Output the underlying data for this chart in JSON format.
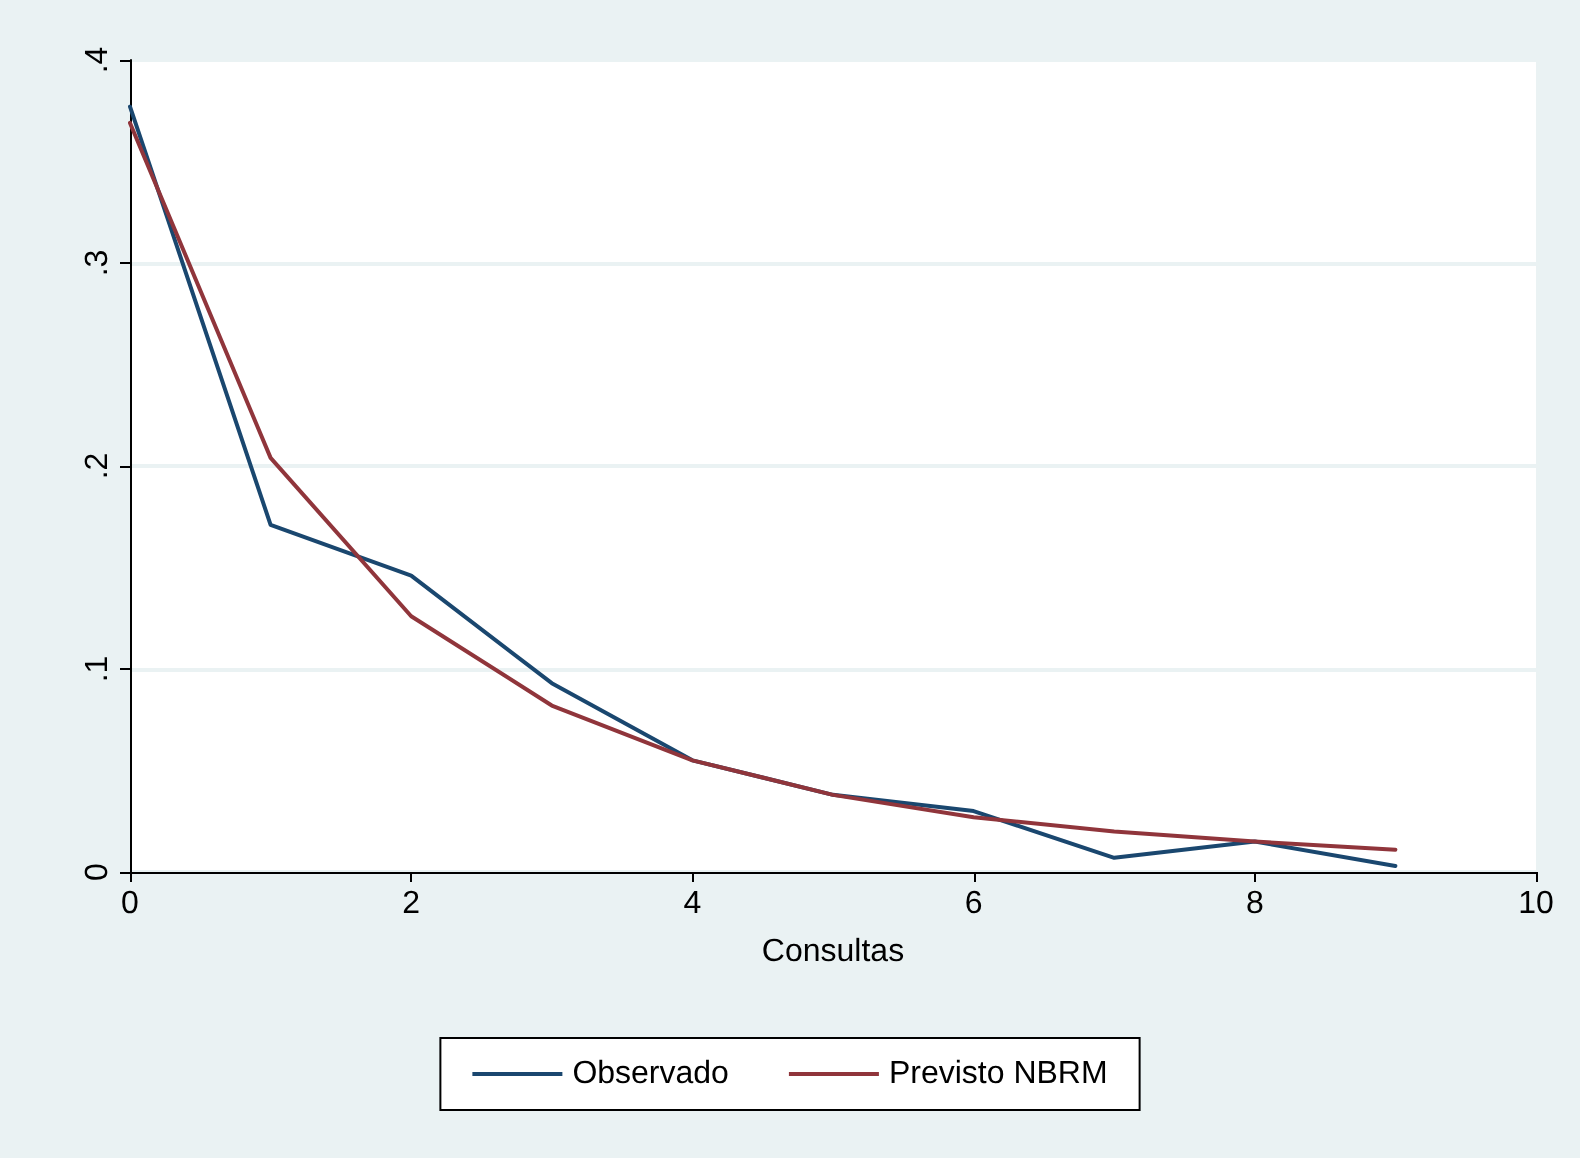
{
  "chart_data": {
    "type": "line",
    "xlabel": "Consultas",
    "x": [
      0,
      1,
      2,
      3,
      4,
      5,
      6,
      7,
      8,
      9
    ],
    "series": [
      {
        "name": "Observado",
        "color": "#1a476f",
        "values": [
          0.377,
          0.171,
          0.146,
          0.093,
          0.055,
          0.038,
          0.03,
          0.007,
          0.015,
          0.003
        ]
      },
      {
        "name": "Previsto NBRM",
        "color": "#90353b",
        "values": [
          0.369,
          0.204,
          0.126,
          0.082,
          0.055,
          0.038,
          0.027,
          0.02,
          0.015,
          0.011
        ]
      }
    ],
    "xlim": [
      0,
      10
    ],
    "xticks": [
      0,
      2,
      4,
      6,
      8,
      10
    ],
    "ylim": [
      0,
      0.4
    ],
    "yticks": [
      {
        "value": 0,
        "label": "0"
      },
      {
        "value": 0.1,
        "label": ".1"
      },
      {
        "value": 0.2,
        "label": ".2"
      },
      {
        "value": 0.3,
        "label": ".3"
      },
      {
        "value": 0.4,
        "label": ".4"
      }
    ],
    "grid": "y",
    "legend": "bottom",
    "marker": "none",
    "line_style": "solid"
  }
}
